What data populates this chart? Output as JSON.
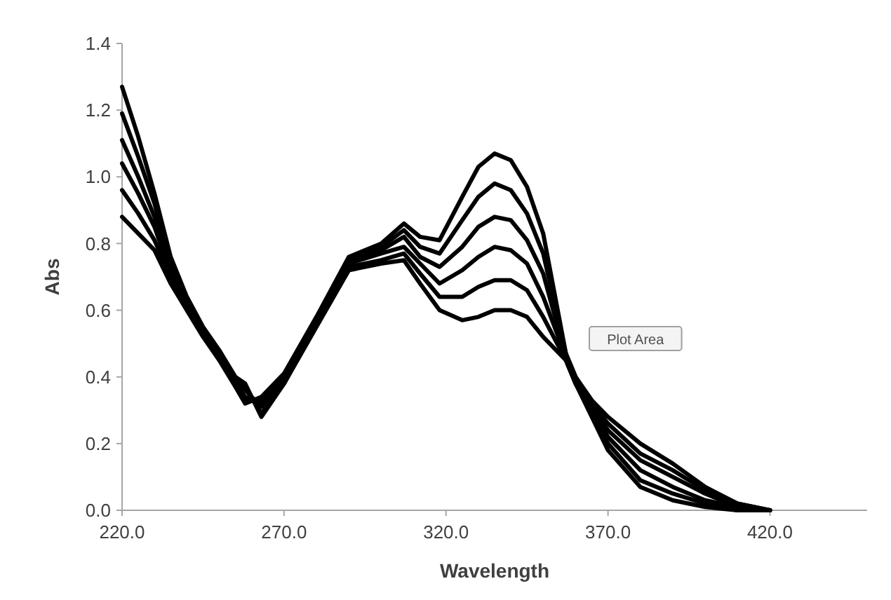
{
  "chart_data": {
    "type": "line",
    "xlabel": "Wavelength",
    "ylabel": "Abs",
    "xlim": [
      220,
      450
    ],
    "xticks": [
      {
        "value": 220,
        "label": "220.0"
      },
      {
        "value": 270,
        "label": "270.0"
      },
      {
        "value": 320,
        "label": "320.0"
      },
      {
        "value": 370,
        "label": "370.0"
      },
      {
        "value": 420,
        "label": "420.0"
      }
    ],
    "ylim": [
      0,
      1.4
    ],
    "yticks": [
      {
        "value": 0,
        "label": "0.0"
      },
      {
        "value": 0.2,
        "label": "0.2"
      },
      {
        "value": 0.4,
        "label": "0.4"
      },
      {
        "value": 0.6,
        "label": "0.6"
      },
      {
        "value": 0.8,
        "label": "0.8"
      },
      {
        "value": 1.0,
        "label": "1.0"
      },
      {
        "value": 1.2,
        "label": "1.2"
      },
      {
        "value": 1.4,
        "label": "1.4"
      }
    ],
    "grid": false,
    "marker": "none",
    "line_style": "solid",
    "x": [
      220,
      225,
      230,
      235,
      240,
      245,
      250,
      255,
      258,
      263,
      270,
      280,
      290,
      300,
      307,
      312,
      318,
      325,
      330,
      335,
      340,
      345,
      350,
      357,
      360,
      365,
      370,
      380,
      390,
      400,
      410,
      420
    ],
    "series": [
      {
        "color": "#000000",
        "values": [
          0.88,
          0.83,
          0.78,
          0.68,
          0.6,
          0.52,
          0.45,
          0.37,
          0.32,
          0.34,
          0.41,
          0.58,
          0.76,
          0.8,
          0.86,
          0.82,
          0.81,
          0.94,
          1.03,
          1.07,
          1.05,
          0.97,
          0.83,
          0.47,
          0.4,
          0.33,
          0.28,
          0.2,
          0.14,
          0.07,
          0.02,
          0
        ]
      },
      {
        "color": "#000000",
        "values": [
          0.96,
          0.89,
          0.81,
          0.7,
          0.61,
          0.53,
          0.46,
          0.38,
          0.33,
          0.33,
          0.4,
          0.57,
          0.75,
          0.79,
          0.84,
          0.79,
          0.77,
          0.87,
          0.94,
          0.98,
          0.96,
          0.89,
          0.77,
          0.47,
          0.4,
          0.32,
          0.26,
          0.17,
          0.12,
          0.06,
          0.02,
          0
        ]
      },
      {
        "color": "#000000",
        "values": [
          1.04,
          0.95,
          0.85,
          0.71,
          0.62,
          0.53,
          0.46,
          0.38,
          0.34,
          0.32,
          0.4,
          0.57,
          0.74,
          0.78,
          0.82,
          0.76,
          0.73,
          0.79,
          0.85,
          0.88,
          0.87,
          0.81,
          0.71,
          0.46,
          0.39,
          0.31,
          0.24,
          0.15,
          0.1,
          0.05,
          0.01,
          0
        ]
      },
      {
        "color": "#000000",
        "values": [
          1.11,
          1.0,
          0.88,
          0.73,
          0.62,
          0.54,
          0.47,
          0.39,
          0.36,
          0.31,
          0.39,
          0.56,
          0.74,
          0.77,
          0.79,
          0.74,
          0.68,
          0.72,
          0.76,
          0.79,
          0.78,
          0.74,
          0.64,
          0.46,
          0.39,
          0.3,
          0.22,
          0.12,
          0.07,
          0.03,
          0.01,
          0
        ]
      },
      {
        "color": "#000000",
        "values": [
          1.19,
          1.06,
          0.92,
          0.74,
          0.63,
          0.54,
          0.47,
          0.39,
          0.37,
          0.29,
          0.38,
          0.56,
          0.73,
          0.75,
          0.77,
          0.71,
          0.64,
          0.64,
          0.67,
          0.69,
          0.69,
          0.66,
          0.58,
          0.45,
          0.38,
          0.29,
          0.2,
          0.09,
          0.05,
          0.02,
          0,
          0
        ]
      },
      {
        "color": "#000000",
        "values": [
          1.27,
          1.12,
          0.95,
          0.76,
          0.64,
          0.55,
          0.48,
          0.4,
          0.38,
          0.28,
          0.38,
          0.55,
          0.72,
          0.74,
          0.75,
          0.68,
          0.6,
          0.57,
          0.58,
          0.6,
          0.6,
          0.58,
          0.52,
          0.45,
          0.38,
          0.28,
          0.18,
          0.07,
          0.03,
          0.01,
          0,
          0
        ]
      }
    ],
    "annotations": [
      "Plot Area"
    ]
  }
}
